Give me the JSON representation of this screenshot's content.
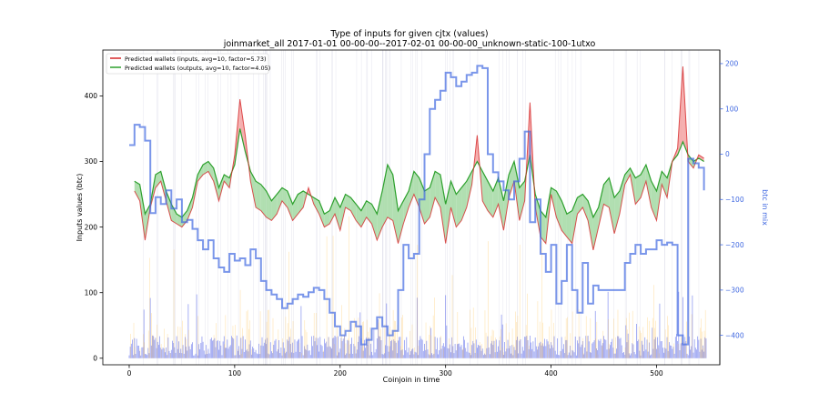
{
  "chart_data": {
    "type": "line",
    "title": "Type of inputs for given cjtx (values)",
    "subtitle": "joinmarket_all 2017-01-01 00-00-00--2017-02-01 00-00-00_unknown-static-100-1utxo",
    "xlabel": "Coinjoin in time",
    "ylabel": "Inputs values (btc)",
    "y2label": "btc in mix",
    "xlim": [
      -25,
      560
    ],
    "ylim": [
      -10,
      470
    ],
    "y2lim": [
      -465,
      230
    ],
    "xticks": [
      0,
      100,
      200,
      300,
      400,
      500
    ],
    "yticks": [
      0,
      100,
      200,
      300,
      400
    ],
    "y2ticks": [
      -400,
      -300,
      -200,
      -100,
      0,
      100,
      200
    ],
    "ytick_labels": [
      "0",
      "100",
      "200",
      "300",
      "400"
    ],
    "xtick_labels": [
      "0",
      "100",
      "200",
      "300",
      "400",
      "500"
    ],
    "y2tick_labels": [
      "−400",
      "−300",
      "−200",
      "−100",
      "0",
      "100",
      "200"
    ],
    "legend": {
      "placement": "top-left",
      "entries": [
        "Predicted wallets (inputs, avg=10, factor=5.73)",
        "Predicted wallets (outputs, avg=10, factor=4.05)"
      ]
    },
    "colors": {
      "inputs": "#d62728",
      "outputs": "#2ca02c",
      "btc_in_mix": "#4169e1",
      "fill_inputs": "#f4a6a6",
      "fill_outputs": "#a8dca8",
      "bars_blue": "#4a5ae8",
      "bars_orange": "#ffc04d",
      "grid_lines": "#dcdce8"
    },
    "series": [
      {
        "name": "Predicted wallets (inputs, avg=10, factor=5.73)",
        "axis": "left",
        "x": [
          5,
          10,
          15,
          20,
          25,
          30,
          35,
          40,
          45,
          50,
          55,
          60,
          65,
          70,
          75,
          80,
          85,
          90,
          95,
          100,
          105,
          110,
          115,
          120,
          125,
          130,
          135,
          140,
          145,
          150,
          155,
          160,
          165,
          170,
          175,
          180,
          185,
          190,
          195,
          200,
          205,
          210,
          215,
          220,
          225,
          230,
          235,
          240,
          245,
          250,
          255,
          260,
          265,
          270,
          275,
          280,
          285,
          290,
          295,
          300,
          305,
          310,
          315,
          320,
          325,
          330,
          335,
          340,
          345,
          350,
          355,
          360,
          365,
          370,
          375,
          380,
          385,
          390,
          395,
          400,
          405,
          410,
          415,
          420,
          425,
          430,
          435,
          440,
          445,
          450,
          455,
          460,
          465,
          470,
          475,
          480,
          485,
          490,
          495,
          500,
          505,
          510,
          515,
          520,
          525,
          530,
          535,
          540,
          545
        ],
        "y": [
          255,
          240,
          180,
          230,
          260,
          270,
          240,
          210,
          205,
          200,
          210,
          230,
          270,
          280,
          285,
          270,
          240,
          270,
          260,
          310,
          395,
          340,
          270,
          230,
          225,
          215,
          210,
          220,
          240,
          230,
          210,
          220,
          230,
          260,
          235,
          220,
          200,
          205,
          220,
          195,
          230,
          225,
          210,
          200,
          215,
          205,
          180,
          200,
          215,
          210,
          175,
          205,
          230,
          250,
          230,
          205,
          215,
          245,
          230,
          175,
          230,
          200,
          210,
          230,
          265,
          340,
          240,
          225,
          215,
          235,
          195,
          245,
          270,
          210,
          240,
          390,
          230,
          185,
          175,
          250,
          215,
          195,
          185,
          175,
          220,
          230,
          210,
          165,
          200,
          235,
          230,
          190,
          220,
          265,
          280,
          235,
          245,
          270,
          230,
          210,
          265,
          245,
          300,
          320,
          445,
          300,
          290,
          310,
          305
        ],
        "fill_to": "Predicted wallets (outputs, avg=10, factor=4.05)"
      },
      {
        "name": "Predicted wallets (outputs, avg=10, factor=4.05)",
        "axis": "left",
        "x": [
          5,
          10,
          15,
          20,
          25,
          30,
          35,
          40,
          45,
          50,
          55,
          60,
          65,
          70,
          75,
          80,
          85,
          90,
          95,
          100,
          105,
          110,
          115,
          120,
          125,
          130,
          135,
          140,
          145,
          150,
          155,
          160,
          165,
          170,
          175,
          180,
          185,
          190,
          195,
          200,
          205,
          210,
          215,
          220,
          225,
          230,
          235,
          240,
          245,
          250,
          255,
          260,
          265,
          270,
          275,
          280,
          285,
          290,
          295,
          300,
          305,
          310,
          315,
          320,
          325,
          330,
          335,
          340,
          345,
          350,
          355,
          360,
          365,
          370,
          375,
          380,
          385,
          390,
          395,
          400,
          405,
          410,
          415,
          420,
          425,
          430,
          435,
          440,
          445,
          450,
          455,
          460,
          465,
          470,
          475,
          480,
          485,
          490,
          495,
          500,
          505,
          510,
          515,
          520,
          525,
          530,
          535,
          540,
          545
        ],
        "y": [
          270,
          265,
          220,
          235,
          280,
          285,
          255,
          235,
          220,
          215,
          225,
          245,
          280,
          295,
          300,
          290,
          260,
          280,
          275,
          295,
          350,
          315,
          285,
          270,
          265,
          255,
          240,
          250,
          260,
          255,
          235,
          250,
          255,
          250,
          245,
          240,
          220,
          225,
          245,
          230,
          250,
          245,
          235,
          225,
          240,
          235,
          220,
          255,
          295,
          280,
          225,
          240,
          255,
          285,
          275,
          255,
          260,
          285,
          280,
          235,
          270,
          250,
          260,
          270,
          285,
          300,
          285,
          270,
          255,
          275,
          240,
          280,
          300,
          260,
          270,
          310,
          250,
          225,
          215,
          260,
          255,
          240,
          220,
          225,
          245,
          250,
          240,
          215,
          230,
          265,
          275,
          245,
          255,
          280,
          290,
          275,
          280,
          295,
          270,
          255,
          285,
          275,
          300,
          310,
          330,
          310,
          300,
          305,
          300
        ]
      },
      {
        "name": "btc in mix",
        "axis": "right",
        "x": [
          0,
          5,
          10,
          15,
          20,
          25,
          30,
          35,
          40,
          45,
          50,
          55,
          60,
          65,
          70,
          75,
          80,
          85,
          90,
          95,
          100,
          105,
          110,
          115,
          120,
          125,
          130,
          135,
          140,
          145,
          150,
          155,
          160,
          165,
          170,
          175,
          180,
          185,
          190,
          195,
          200,
          205,
          210,
          215,
          220,
          225,
          230,
          235,
          240,
          245,
          250,
          255,
          260,
          265,
          270,
          275,
          280,
          285,
          290,
          295,
          300,
          305,
          310,
          315,
          320,
          325,
          330,
          335,
          340,
          345,
          350,
          355,
          360,
          365,
          370,
          375,
          380,
          385,
          390,
          395,
          400,
          405,
          410,
          415,
          420,
          425,
          430,
          435,
          440,
          445,
          450,
          455,
          460,
          465,
          470,
          475,
          480,
          485,
          490,
          495,
          500,
          505,
          510,
          515,
          520,
          525,
          530,
          535,
          540,
          545
        ],
        "y": [
          20,
          65,
          60,
          30,
          -130,
          -95,
          -110,
          -80,
          -120,
          -100,
          -150,
          -145,
          -165,
          -190,
          -210,
          -190,
          -230,
          -250,
          -260,
          -220,
          -235,
          -230,
          -245,
          -210,
          -230,
          -280,
          -300,
          -310,
          -320,
          -340,
          -330,
          -320,
          -310,
          -315,
          -305,
          -295,
          -300,
          -320,
          -350,
          -380,
          -400,
          -390,
          -370,
          -380,
          -420,
          -410,
          -385,
          -360,
          -380,
          -400,
          -390,
          -300,
          -200,
          -230,
          -220,
          -100,
          0,
          100,
          120,
          140,
          180,
          170,
          150,
          160,
          175,
          180,
          195,
          190,
          0,
          -40,
          -60,
          -80,
          -100,
          -60,
          -10,
          50,
          -150,
          -100,
          -220,
          -260,
          -200,
          -330,
          -280,
          -200,
          -300,
          -350,
          -240,
          -330,
          -290,
          -300,
          -300,
          -300,
          -300,
          -300,
          -240,
          -220,
          -200,
          -220,
          -210,
          -210,
          -190,
          -200,
          -195,
          -200,
          -400,
          -420,
          -10,
          -20,
          -30,
          -80
        ]
      }
    ]
  }
}
